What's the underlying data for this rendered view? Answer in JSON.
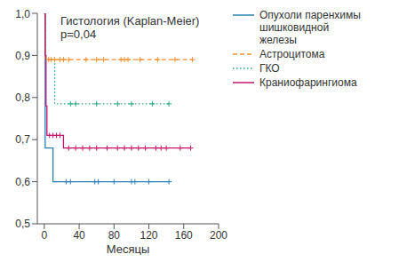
{
  "chart_data": {
    "type": "line",
    "title": "Гистология (Kaplan-Meier)",
    "subtitle": "p=0,04",
    "x_label": "Месяцы",
    "xlim": [
      -8,
      200
    ],
    "xticks": [
      0,
      40,
      80,
      120,
      160,
      200
    ],
    "ylim": [
      0.5,
      1.0
    ],
    "yticks": [
      {
        "value": 0.5,
        "label": "0,5"
      },
      {
        "value": 0.6,
        "label": "0,6"
      },
      {
        "value": 0.7,
        "label": "0,7"
      },
      {
        "value": 0.8,
        "label": "0,8"
      },
      {
        "value": 0.9,
        "label": "0,9"
      },
      {
        "value": 1.0,
        "label": "1,0"
      }
    ],
    "grid": false,
    "legend": "right",
    "series": [
      {
        "name": "Опухоли паренхимы шишковидной железы",
        "color": "#2b7fb3",
        "line_style": "solid",
        "x": [
          0,
          1,
          10,
          143
        ],
        "values": [
          1.0,
          0.68,
          0.6,
          0.6
        ],
        "censored": [
          25,
          30,
          58,
          62,
          80,
          100,
          104,
          120,
          143
        ]
      },
      {
        "name": "Астроцитома",
        "color": "#f0902e",
        "line_style": "dashed",
        "x": [
          0,
          1,
          170
        ],
        "values": [
          1.0,
          0.89,
          0.89
        ],
        "censored": [
          5,
          8,
          12,
          18,
          22,
          28,
          48,
          60,
          68,
          88,
          92,
          96,
          110,
          130,
          150,
          170
        ]
      },
      {
        "name": "ГКО",
        "color": "#2aa880",
        "line_style": "dotted",
        "x": [
          0,
          1,
          12,
          143
        ],
        "values": [
          1.0,
          0.89,
          0.785,
          0.785
        ],
        "censored": [
          30,
          36,
          60,
          84,
          100,
          124,
          143
        ]
      },
      {
        "name": "Краниофарингиома",
        "color": "#c4126c",
        "line_style": "solid",
        "x": [
          0,
          1,
          2,
          3,
          22,
          168
        ],
        "values": [
          1.0,
          0.9,
          0.78,
          0.71,
          0.68,
          0.68
        ],
        "censored": [
          6,
          10,
          14,
          18,
          28,
          36,
          44,
          52,
          60,
          72,
          84,
          92,
          100,
          108,
          116,
          128,
          134,
          140,
          156,
          168
        ]
      }
    ]
  }
}
